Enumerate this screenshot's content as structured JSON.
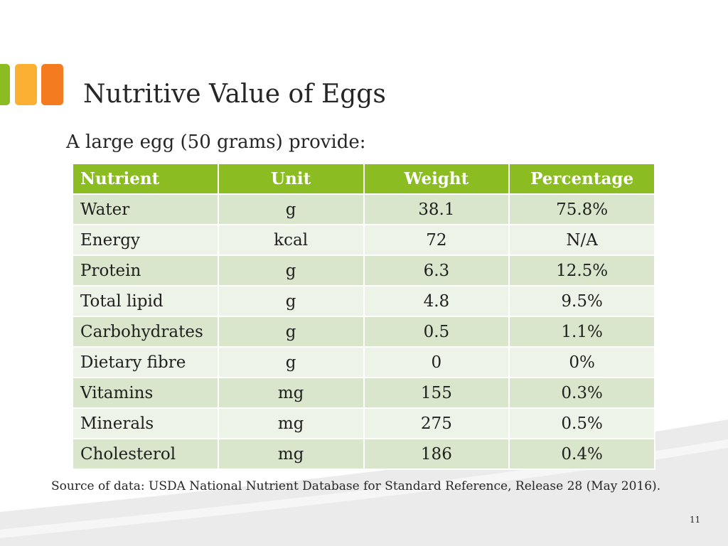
{
  "colors": {
    "header_green": "#8BBD23",
    "row_dark": "#D9E6CC",
    "row_light": "#EDF3E7",
    "logo_green": "#8BBD23",
    "logo_yellow": "#FBB034",
    "logo_orange": "#F47B20",
    "swoosh_gray": "#EBEBEB"
  },
  "slide": {
    "title": "Nutritive Value of Eggs",
    "subtitle": "A large egg (50 grams) provide:",
    "source": "Source of data: USDA National Nutrient Database for Standard Reference, Release 28 (May 2016).",
    "page_number": "11"
  },
  "table": {
    "headers": [
      "Nutrient",
      "Unit",
      "Weight",
      "Percentage"
    ],
    "rows": [
      [
        "Water",
        "g",
        "38.1",
        "75.8%"
      ],
      [
        "Energy",
        "kcal",
        "72",
        "N/A"
      ],
      [
        "Protein",
        "g",
        "6.3",
        "12.5%"
      ],
      [
        "Total lipid",
        "g",
        "4.8",
        "9.5%"
      ],
      [
        "Carbohydrates",
        "g",
        "0.5",
        "1.1%"
      ],
      [
        "Dietary fibre",
        "g",
        "0",
        "0%"
      ],
      [
        "Vitamins",
        "mg",
        "155",
        "0.3%"
      ],
      [
        "Minerals",
        "mg",
        "275",
        "0.5%"
      ],
      [
        "Cholesterol",
        "mg",
        "186",
        "0.4%"
      ]
    ]
  }
}
